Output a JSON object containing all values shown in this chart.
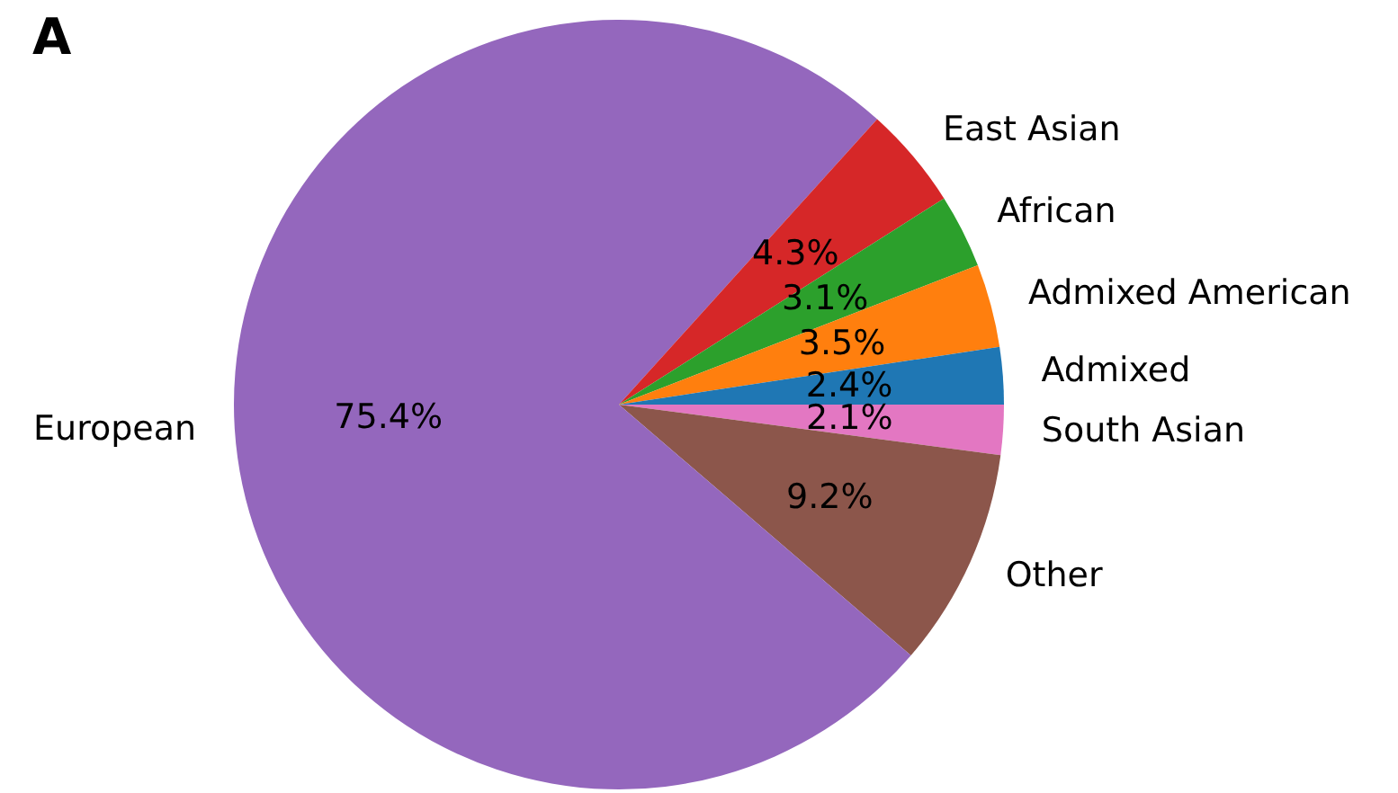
{
  "chart_data": {
    "type": "pie",
    "title": "A",
    "categories": [
      "South Asian",
      "Other",
      "European",
      "East Asian",
      "African",
      "Admixed American",
      "Admixed"
    ],
    "values": [
      2.1,
      9.2,
      75.4,
      4.3,
      3.1,
      3.5,
      2.4
    ],
    "value_labels": [
      "2.1%",
      "9.2%",
      "75.4%",
      "4.3%",
      "3.1%",
      "3.5%",
      "2.4%"
    ],
    "colors": [
      "#e377c2",
      "#8c564b",
      "#9467bd",
      "#d62728",
      "#2ca02c",
      "#ff7f0e",
      "#1f77b4"
    ],
    "legend": false
  }
}
